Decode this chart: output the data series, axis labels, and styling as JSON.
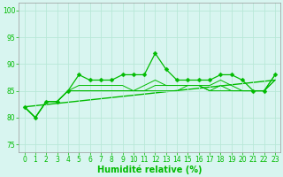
{
  "xlabel": "Humidité relative (%)",
  "background_color": "#d8f5f0",
  "grid_color": "#b8e8d8",
  "line_color": "#00bb00",
  "xlim": [
    -0.5,
    23.5
  ],
  "ylim": [
    73.5,
    101.5
  ],
  "yticks": [
    75,
    80,
    85,
    90,
    95,
    100
  ],
  "xticks": [
    0,
    1,
    2,
    3,
    4,
    5,
    6,
    7,
    8,
    9,
    10,
    11,
    12,
    13,
    14,
    15,
    16,
    17,
    18,
    19,
    20,
    21,
    22,
    23
  ],
  "series_main": [
    82,
    80,
    83,
    83,
    85,
    88,
    87,
    87,
    87,
    88,
    88,
    88,
    92,
    89,
    87,
    87,
    87,
    87,
    88,
    88,
    87,
    85,
    85,
    88
  ],
  "series_other": [
    [
      82,
      80,
      83,
      83,
      85,
      86,
      86,
      86,
      86,
      86,
      85,
      86,
      87,
      86,
      86,
      86,
      86,
      86,
      87,
      86,
      85,
      85,
      85,
      88
    ],
    [
      82,
      80,
      83,
      83,
      85,
      85,
      85,
      85,
      85,
      85,
      85,
      85,
      86,
      86,
      86,
      86,
      86,
      85,
      86,
      85,
      85,
      85,
      85,
      87
    ],
    [
      82,
      80,
      83,
      83,
      85,
      85,
      85,
      85,
      85,
      85,
      85,
      85,
      85,
      85,
      85,
      86,
      86,
      85,
      85,
      85,
      85,
      85,
      85,
      87
    ]
  ],
  "trend": [
    82.0,
    87.0
  ],
  "xlabel_fontsize": 7,
  "tick_fontsize": 5.5
}
